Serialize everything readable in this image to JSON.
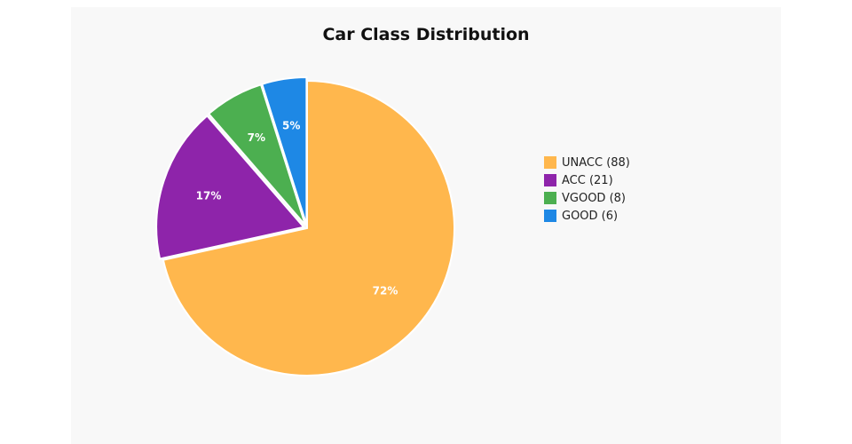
{
  "chart_data": {
    "type": "pie",
    "title": "Car Class Distribution",
    "slices": [
      {
        "label": "UNACC (88)",
        "value": 88,
        "pct_label": "72%",
        "color": "#ffb74d"
      },
      {
        "label": "ACC (21)",
        "value": 21,
        "pct_label": "17%",
        "color": "#8e24aa"
      },
      {
        "label": "VGOOD (8)",
        "value": 8,
        "pct_label": "7%",
        "color": "#4caf50"
      },
      {
        "label": "GOOD (6)",
        "value": 6,
        "pct_label": "5%",
        "color": "#1e88e5"
      }
    ],
    "legend_position": "right",
    "start_at": "top",
    "direction": "clockwise"
  }
}
